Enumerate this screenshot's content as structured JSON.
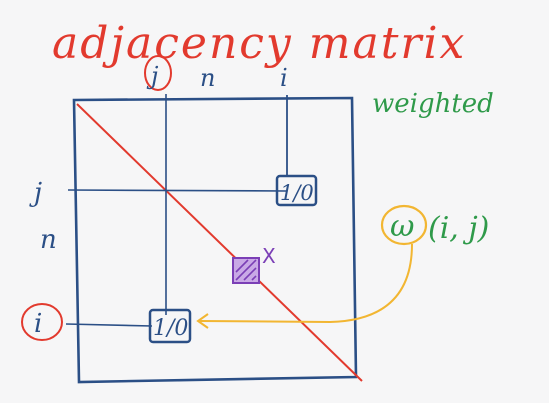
{
  "title": "adjacency matrix",
  "weighted_label": "weighted",
  "column_labels": {
    "j": "j",
    "n": "n",
    "i": "i"
  },
  "row_labels": {
    "j": "j",
    "n": "n",
    "i": "i"
  },
  "cells": {
    "top_right_value": "1/0",
    "bottom_left_value": "1/0"
  },
  "weight_formula": {
    "omega": "ω",
    "args": "(i, j)"
  },
  "diagonal_mark": "X",
  "colors": {
    "title": "#e23a2e",
    "matrix": "#2b4f86",
    "weighted": "#2f9a4a",
    "weight_circle": "#f2b632",
    "diagonal": "#e23a2e",
    "mark": "#7b3fb6",
    "background": "#f6f6f7"
  }
}
